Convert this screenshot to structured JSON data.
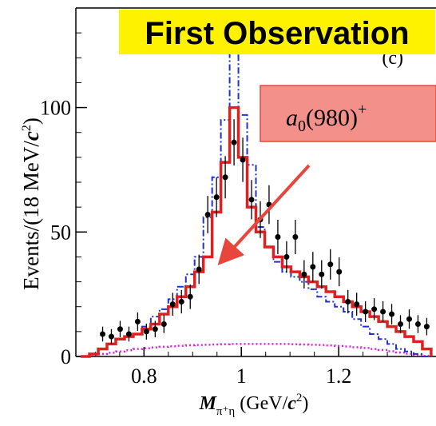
{
  "banner": {
    "text": "First Observation",
    "background": "#fff200",
    "color": "#000000"
  },
  "panel_label": "(c)",
  "annotation": {
    "text": "a",
    "sub": "0",
    "rest": "(980)",
    "sup": "+",
    "fill": "#f4908a",
    "stroke": "#e8453c",
    "arrow_color": "#e8453c"
  },
  "chart_data": {
    "type": "line",
    "title": "",
    "xlabel_main": "M",
    "xlabel_sub": "π⁺η",
    "xlabel_unit_open": " (GeV/",
    "xlabel_unit_c": "c",
    "xlabel_unit_sup": "2",
    "xlabel_unit_close": ")",
    "ylabel_prefix": "Events/(18 MeV/",
    "ylabel_c": "c",
    "ylabel_sup": "2",
    "ylabel_suffix": ")",
    "xlim": [
      0.66,
      1.4
    ],
    "ylim": [
      0,
      140
    ],
    "xticks": [
      0.8,
      1,
      1.2
    ],
    "xtick_labels": [
      "0.8",
      "1",
      "1.2"
    ],
    "yticks": [
      0,
      50,
      100
    ],
    "ytick_labels": [
      "0",
      "50",
      "100"
    ],
    "bin_edges": [
      0.67,
      0.688,
      0.706,
      0.724,
      0.742,
      0.76,
      0.778,
      0.796,
      0.814,
      0.832,
      0.85,
      0.868,
      0.886,
      0.904,
      0.922,
      0.94,
      0.958,
      0.976,
      0.994,
      1.012,
      1.03,
      1.048,
      1.066,
      1.084,
      1.102,
      1.12,
      1.138,
      1.156,
      1.174,
      1.192,
      1.21,
      1.228,
      1.246,
      1.264,
      1.282,
      1.3,
      1.318,
      1.336,
      1.354,
      1.372,
      1.39
    ],
    "series": [
      {
        "color": "#e02020",
        "style": "solid-step",
        "values": [
          0,
          1,
          3,
          5,
          7,
          8,
          9,
          11,
          13,
          17,
          20,
          24,
          28,
          34,
          40,
          58,
          78,
          100,
          80,
          60,
          50,
          44,
          40,
          36,
          34,
          32,
          30,
          28,
          26,
          24,
          22,
          20,
          18,
          16,
          14,
          12,
          10,
          8,
          6,
          3
        ]
      },
      {
        "color": "#2030d0",
        "style": "dashdot-step",
        "values": [
          0,
          1,
          3,
          5,
          7,
          8,
          9,
          12,
          16,
          19,
          23,
          28,
          33,
          40,
          56,
          72,
          95,
          124,
          97,
          77,
          52,
          44,
          38,
          34,
          32,
          30,
          27,
          24,
          22,
          20,
          18,
          15,
          12,
          9,
          7,
          5,
          3,
          2,
          1,
          0
        ]
      },
      {
        "color": "#e020e0",
        "style": "dotted-step",
        "values": [
          0,
          0.5,
          1,
          1.5,
          2,
          2.5,
          3,
          3.3,
          3.6,
          3.9,
          4.1,
          4.3,
          4.5,
          4.6,
          4.7,
          4.8,
          4.9,
          5,
          5,
          5,
          5,
          5,
          5,
          5,
          4.9,
          4.8,
          4.7,
          4.6,
          4.4,
          4.2,
          4,
          3.7,
          3.4,
          3,
          2.6,
          2.1,
          1.6,
          1.1,
          0.6,
          0.2
        ]
      },
      {
        "color": "#000000",
        "style": "points",
        "x": [
          0.715,
          0.733,
          0.751,
          0.769,
          0.787,
          0.805,
          0.823,
          0.841,
          0.859,
          0.877,
          0.895,
          0.913,
          0.931,
          0.949,
          0.967,
          0.985,
          1.003,
          1.021,
          1.039,
          1.057,
          1.075,
          1.093,
          1.111,
          1.129,
          1.147,
          1.165,
          1.183,
          1.201,
          1.219,
          1.237,
          1.255,
          1.273,
          1.291,
          1.309,
          1.327,
          1.345,
          1.363,
          1.381
        ],
        "y": [
          9,
          8,
          11,
          9,
          14,
          10,
          11,
          13,
          21,
          22,
          24,
          35,
          57,
          64,
          72,
          86,
          79,
          63,
          55,
          61,
          48,
          40,
          48,
          33,
          36,
          33,
          37,
          34,
          22,
          21,
          18,
          19,
          18,
          17,
          13,
          15,
          13,
          12
        ],
        "err": [
          3,
          3,
          3.3,
          3,
          3.7,
          3.2,
          3.3,
          3.6,
          4.6,
          4.7,
          4.9,
          5.9,
          7.5,
          8,
          8.5,
          9.3,
          8.9,
          7.9,
          7.4,
          7.8,
          6.9,
          6.3,
          6.9,
          5.7,
          6,
          5.7,
          6.1,
          5.8,
          4.7,
          4.6,
          4.2,
          4.4,
          4.2,
          4.1,
          3.6,
          3.9,
          3.6,
          3.5
        ]
      }
    ]
  }
}
